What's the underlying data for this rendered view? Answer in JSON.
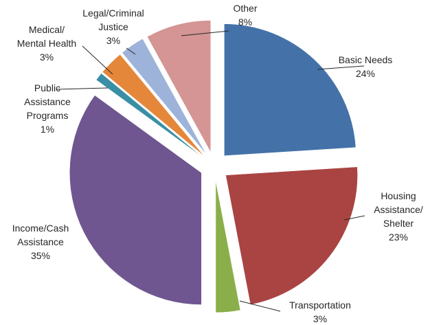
{
  "chart_data": {
    "type": "pie",
    "slices": [
      {
        "name": "Basic Needs",
        "value": 24,
        "label_lines": [
          "Basic Needs",
          "24%"
        ],
        "color": "#4472A8"
      },
      {
        "name": "Housing Assistance/ Shelter",
        "value": 23,
        "label_lines": [
          "Housing",
          "Assistance/",
          "Shelter",
          "23%"
        ],
        "color": "#A94442"
      },
      {
        "name": "Transportation",
        "value": 3,
        "label_lines": [
          "Transportation",
          "3%"
        ],
        "color": "#8AAF4A"
      },
      {
        "name": "Income/Cash Assistance",
        "value": 35,
        "label_lines": [
          "Income/Cash",
          "Assistance",
          "35%"
        ],
        "color": "#6F5690"
      },
      {
        "name": "Public Assistance Programs",
        "value": 1,
        "label_lines": [
          "Public",
          "Assistance",
          "Programs",
          "1%"
        ],
        "color": "#3A8FA5"
      },
      {
        "name": "Medical/ Mental Health",
        "value": 3,
        "label_lines": [
          "Medical/",
          "Mental Health",
          "3%"
        ],
        "color": "#E5873A"
      },
      {
        "name": "Legal/Criminal Justice",
        "value": 3,
        "label_lines": [
          "Legal/Criminal",
          "Justice",
          "3%"
        ],
        "color": "#9DB3D9"
      },
      {
        "name": "Other",
        "value": 8,
        "label_lines": [
          "Other",
          "8%"
        ],
        "color": "#D49594"
      }
    ]
  }
}
